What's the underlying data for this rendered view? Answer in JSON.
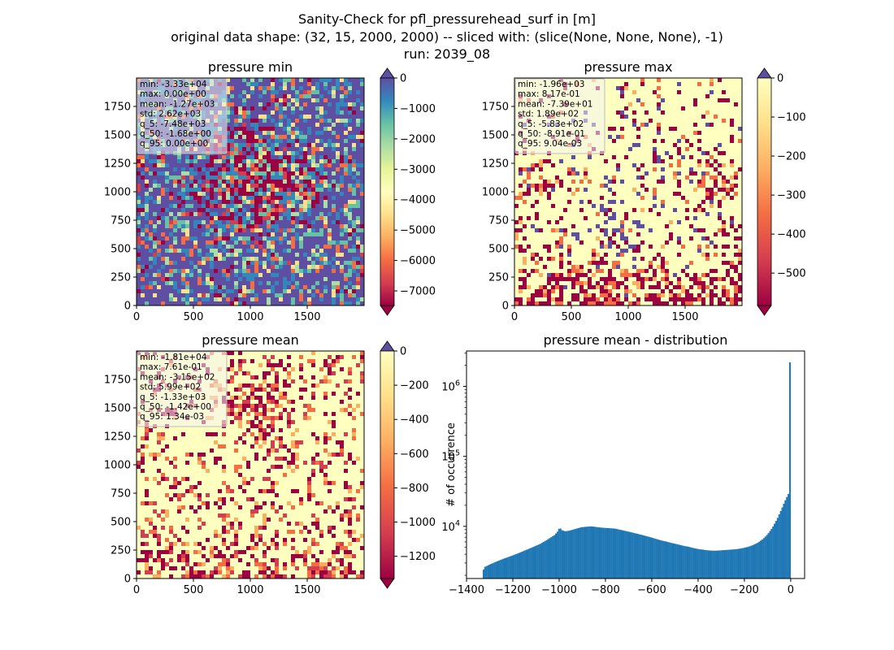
{
  "figure": {
    "title_lines": [
      "Sanity-Check for pfl_pressurehead_surf in [m]",
      "original data shape: (32, 15, 2000, 2000) -- sliced with: (slice(None, None, None), -1)",
      "run: 2039_08"
    ]
  },
  "colors": {
    "spectral": [
      "#9e0142",
      "#d53e4f",
      "#f46d43",
      "#fdae61",
      "#fee08b",
      "#ffffbf",
      "#e6f598",
      "#abdda4",
      "#66c2a5",
      "#3288bd",
      "#5e4fa2"
    ],
    "hist_bar": "#1f77b4"
  },
  "chart_data": [
    {
      "type": "heatmap",
      "title": "pressure min",
      "x_ticks": [
        "0",
        "500",
        "1000",
        "1500"
      ],
      "y_ticks": [
        "0",
        "250",
        "500",
        "750",
        "1000",
        "1250",
        "1500",
        "1750"
      ],
      "xlim": [
        0,
        2000
      ],
      "ylim": [
        0,
        2000
      ],
      "colorbar": {
        "ticks": [
          "0",
          "−1000",
          "−2000",
          "−3000",
          "−4000",
          "−5000",
          "−6000",
          "−7000"
        ],
        "range": [
          -7480,
          0
        ],
        "extend": "both"
      },
      "stats": [
        "min: -3.33e+04",
        "max: 0.00e+00",
        "mean: -1.27e+03",
        "std: 2.62e+03",
        "q_5: -7.48e+03",
        "q_50: -1.68e+00",
        "q_95: 0.00e+00"
      ],
      "pattern": "min"
    },
    {
      "type": "heatmap",
      "title": "pressure max",
      "x_ticks": [
        "0",
        "500",
        "1000",
        "1500"
      ],
      "y_ticks": [
        "0",
        "250",
        "500",
        "750",
        "1000",
        "1250",
        "1500",
        "1750"
      ],
      "xlim": [
        0,
        2000
      ],
      "ylim": [
        0,
        2000
      ],
      "colorbar": {
        "ticks": [
          "0",
          "−100",
          "−200",
          "−300",
          "−400",
          "−500"
        ],
        "range": [
          -583,
          0
        ],
        "extend": "both"
      },
      "stats": [
        "min: -1.96e+03",
        "max: 8.17e-01",
        "mean: -7.39e+01",
        "std: 1.89e+02",
        "q_5: -5.83e+02",
        "q_50: -8.91e-01",
        "q_95: 9.04e-03"
      ],
      "pattern": "max"
    },
    {
      "type": "heatmap",
      "title": "pressure mean",
      "x_ticks": [
        "0",
        "500",
        "1000",
        "1500"
      ],
      "y_ticks": [
        "0",
        "250",
        "500",
        "750",
        "1000",
        "1250",
        "1500",
        "1750"
      ],
      "xlim": [
        0,
        2000
      ],
      "ylim": [
        0,
        2000
      ],
      "colorbar": {
        "ticks": [
          "0",
          "−200",
          "−400",
          "−600",
          "−800",
          "−1000",
          "−1200"
        ],
        "range": [
          -1330,
          0
        ],
        "extend": "both"
      },
      "stats": [
        "min: -1.81e+04",
        "max: 7.61e-01",
        "mean: -3.15e+02",
        "std: 5.99e+02",
        "q_5: -1.33e+03",
        "q_50: -1.42e+00",
        "q_95: 1.34e-03"
      ],
      "pattern": "mean"
    },
    {
      "type": "bar",
      "title": "pressure mean - distribution",
      "ylabel": "# of occurrence",
      "xlabel": "",
      "y_scale": "log",
      "xlim": [
        -1400,
        60
      ],
      "ylim": [
        1800,
        3200000
      ],
      "x_ticks": [
        {
          "value": -1400,
          "label": "−1400"
        },
        {
          "value": -1200,
          "label": "−1200"
        },
        {
          "value": -1000,
          "label": "−1000"
        },
        {
          "value": -800,
          "label": "−800"
        },
        {
          "value": -600,
          "label": "−600"
        },
        {
          "value": -400,
          "label": "−400"
        },
        {
          "value": -200,
          "label": "−200"
        },
        {
          "value": 0,
          "label": "0"
        }
      ],
      "y_ticks": [
        {
          "value": 10000,
          "base": "10",
          "exp": "4"
        },
        {
          "value": 100000,
          "base": "10",
          "exp": "5"
        },
        {
          "value": 1000000,
          "base": "10",
          "exp": "6"
        }
      ],
      "bins": {
        "start": -1330,
        "end": 0,
        "count": 200
      },
      "curve_points": [
        [
          -1330,
          2300
        ],
        [
          -1320,
          2650
        ],
        [
          -1300,
          2850
        ],
        [
          -1270,
          3150
        ],
        [
          -1240,
          3450
        ],
        [
          -1200,
          3850
        ],
        [
          -1160,
          4350
        ],
        [
          -1120,
          4950
        ],
        [
          -1080,
          5650
        ],
        [
          -1050,
          6500
        ],
        [
          -1020,
          7500
        ],
        [
          -1005,
          8600
        ],
        [
          -998,
          9700
        ],
        [
          -990,
          8900
        ],
        [
          -975,
          8500
        ],
        [
          -955,
          8700
        ],
        [
          -930,
          9200
        ],
        [
          -905,
          9700
        ],
        [
          -880,
          9900
        ],
        [
          -860,
          10000
        ],
        [
          -840,
          9800
        ],
        [
          -820,
          9600
        ],
        [
          -800,
          9500
        ],
        [
          -780,
          9400
        ],
        [
          -760,
          9300
        ],
        [
          -740,
          9000
        ],
        [
          -720,
          8700
        ],
        [
          -700,
          8400
        ],
        [
          -680,
          8100
        ],
        [
          -660,
          7800
        ],
        [
          -640,
          7500
        ],
        [
          -620,
          7200
        ],
        [
          -600,
          6900
        ],
        [
          -580,
          6600
        ],
        [
          -560,
          6300
        ],
        [
          -540,
          6100
        ],
        [
          -520,
          5850
        ],
        [
          -500,
          5650
        ],
        [
          -480,
          5450
        ],
        [
          -460,
          5250
        ],
        [
          -440,
          5100
        ],
        [
          -420,
          4900
        ],
        [
          -400,
          4750
        ],
        [
          -380,
          4650
        ],
        [
          -360,
          4550
        ],
        [
          -340,
          4500
        ],
        [
          -320,
          4500
        ],
        [
          -300,
          4550
        ],
        [
          -280,
          4600
        ],
        [
          -260,
          4650
        ],
        [
          -240,
          4700
        ],
        [
          -220,
          4800
        ],
        [
          -200,
          4950
        ],
        [
          -180,
          5150
        ],
        [
          -160,
          5450
        ],
        [
          -140,
          5900
        ],
        [
          -120,
          6600
        ],
        [
          -100,
          7700
        ],
        [
          -80,
          9500
        ],
        [
          -60,
          12500
        ],
        [
          -40,
          17500
        ],
        [
          -25,
          23000
        ],
        [
          -15,
          27000
        ],
        [
          -8,
          30000
        ],
        [
          0,
          2200000
        ]
      ]
    }
  ]
}
